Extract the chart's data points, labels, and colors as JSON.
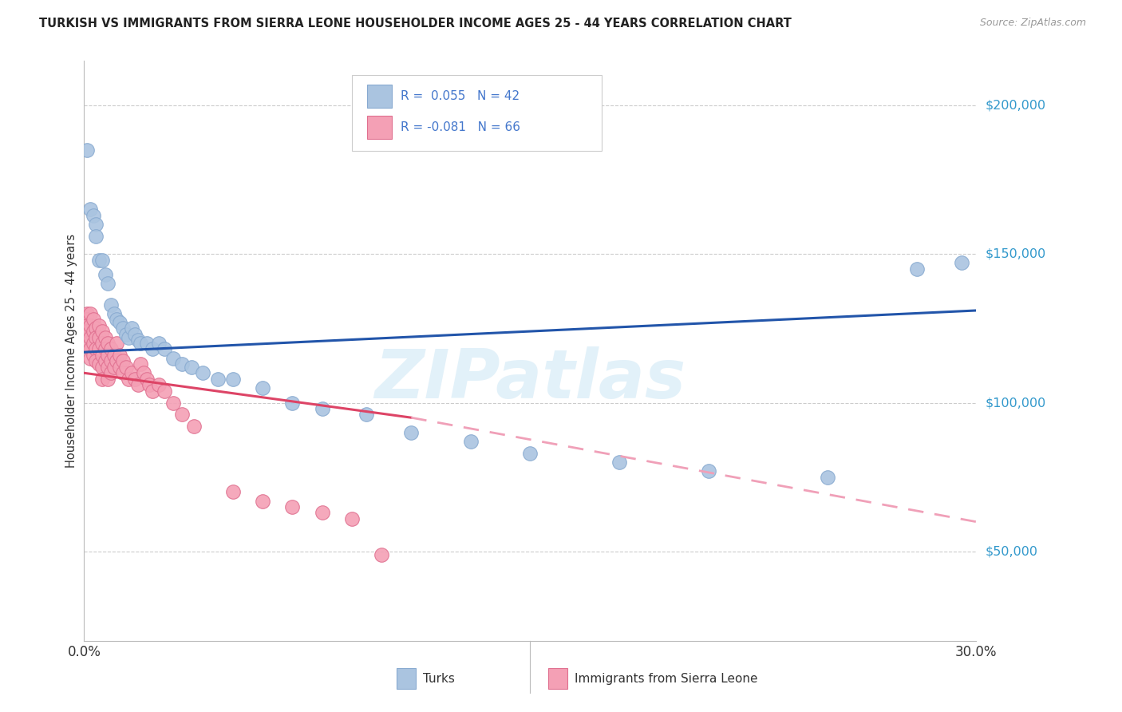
{
  "title": "TURKISH VS IMMIGRANTS FROM SIERRA LEONE HOUSEHOLDER INCOME AGES 25 - 44 YEARS CORRELATION CHART",
  "source": "Source: ZipAtlas.com",
  "ylabel": "Householder Income Ages 25 - 44 years",
  "y_ticks": [
    50000,
    100000,
    150000,
    200000
  ],
  "y_tick_labels": [
    "$50,000",
    "$100,000",
    "$150,000",
    "$200,000"
  ],
  "xlim": [
    0.0,
    0.3
  ],
  "ylim": [
    20000,
    215000
  ],
  "background_color": "#ffffff",
  "grid_color": "#cccccc",
  "turks_color": "#aac4e0",
  "turks_edge_color": "#88aad0",
  "sierra_leone_color": "#f4a0b5",
  "sierra_leone_edge_color": "#e07090",
  "trend_turks_color": "#2255aa",
  "trend_sierra_solid_color": "#dd4466",
  "trend_sierra_dashed_color": "#f0a0b8",
  "R_turks": 0.055,
  "N_turks": 42,
  "R_sierra": -0.081,
  "N_sierra": 66,
  "legend_label_turks": "Turks",
  "legend_label_sierra": "Immigrants from Sierra Leone",
  "legend_text_color": "#4477cc",
  "watermark_text": "ZIPatlas",
  "watermark_color": "#d0e8f5",
  "turks_trend_x0": 0.0,
  "turks_trend_y0": 117000,
  "turks_trend_x1": 0.3,
  "turks_trend_y1": 131000,
  "sierra_trend_x0": 0.0,
  "sierra_trend_y0": 110000,
  "sierra_solid_xend": 0.11,
  "sierra_solid_yend": 95000,
  "sierra_dashed_xend": 0.3,
  "sierra_dashed_yend": 60000,
  "turks_x": [
    0.001,
    0.002,
    0.003,
    0.004,
    0.004,
    0.005,
    0.006,
    0.007,
    0.008,
    0.009,
    0.01,
    0.011,
    0.012,
    0.013,
    0.014,
    0.015,
    0.016,
    0.017,
    0.018,
    0.019,
    0.021,
    0.023,
    0.025,
    0.027,
    0.03,
    0.033,
    0.036,
    0.04,
    0.045,
    0.05,
    0.06,
    0.07,
    0.08,
    0.095,
    0.11,
    0.13,
    0.15,
    0.18,
    0.21,
    0.25,
    0.28,
    0.295
  ],
  "turks_y": [
    185000,
    165000,
    163000,
    160000,
    156000,
    148000,
    148000,
    143000,
    140000,
    133000,
    130000,
    128000,
    127000,
    125000,
    123000,
    122000,
    125000,
    123000,
    121000,
    120000,
    120000,
    118000,
    120000,
    118000,
    115000,
    113000,
    112000,
    110000,
    108000,
    108000,
    105000,
    100000,
    98000,
    96000,
    90000,
    87000,
    83000,
    80000,
    77000,
    75000,
    145000,
    147000
  ],
  "sierra_x": [
    0.001,
    0.001,
    0.001,
    0.001,
    0.001,
    0.002,
    0.002,
    0.002,
    0.002,
    0.002,
    0.003,
    0.003,
    0.003,
    0.003,
    0.004,
    0.004,
    0.004,
    0.004,
    0.005,
    0.005,
    0.005,
    0.005,
    0.006,
    0.006,
    0.006,
    0.006,
    0.006,
    0.007,
    0.007,
    0.007,
    0.008,
    0.008,
    0.008,
    0.008,
    0.009,
    0.009,
    0.009,
    0.01,
    0.01,
    0.011,
    0.011,
    0.012,
    0.012,
    0.013,
    0.013,
    0.014,
    0.015,
    0.016,
    0.017,
    0.018,
    0.019,
    0.02,
    0.021,
    0.022,
    0.023,
    0.025,
    0.027,
    0.03,
    0.033,
    0.037,
    0.05,
    0.06,
    0.07,
    0.08,
    0.09,
    0.1
  ],
  "sierra_y": [
    130000,
    128000,
    126000,
    124000,
    120000,
    130000,
    126000,
    122000,
    118000,
    115000,
    128000,
    124000,
    120000,
    116000,
    125000,
    122000,
    118000,
    114000,
    126000,
    122000,
    118000,
    113000,
    124000,
    120000,
    116000,
    112000,
    108000,
    122000,
    118000,
    114000,
    120000,
    116000,
    112000,
    108000,
    118000,
    114000,
    110000,
    116000,
    112000,
    120000,
    114000,
    116000,
    112000,
    114000,
    110000,
    112000,
    108000,
    110000,
    108000,
    106000,
    113000,
    110000,
    108000,
    106000,
    104000,
    106000,
    104000,
    100000,
    96000,
    92000,
    70000,
    67000,
    65000,
    63000,
    61000,
    49000
  ]
}
